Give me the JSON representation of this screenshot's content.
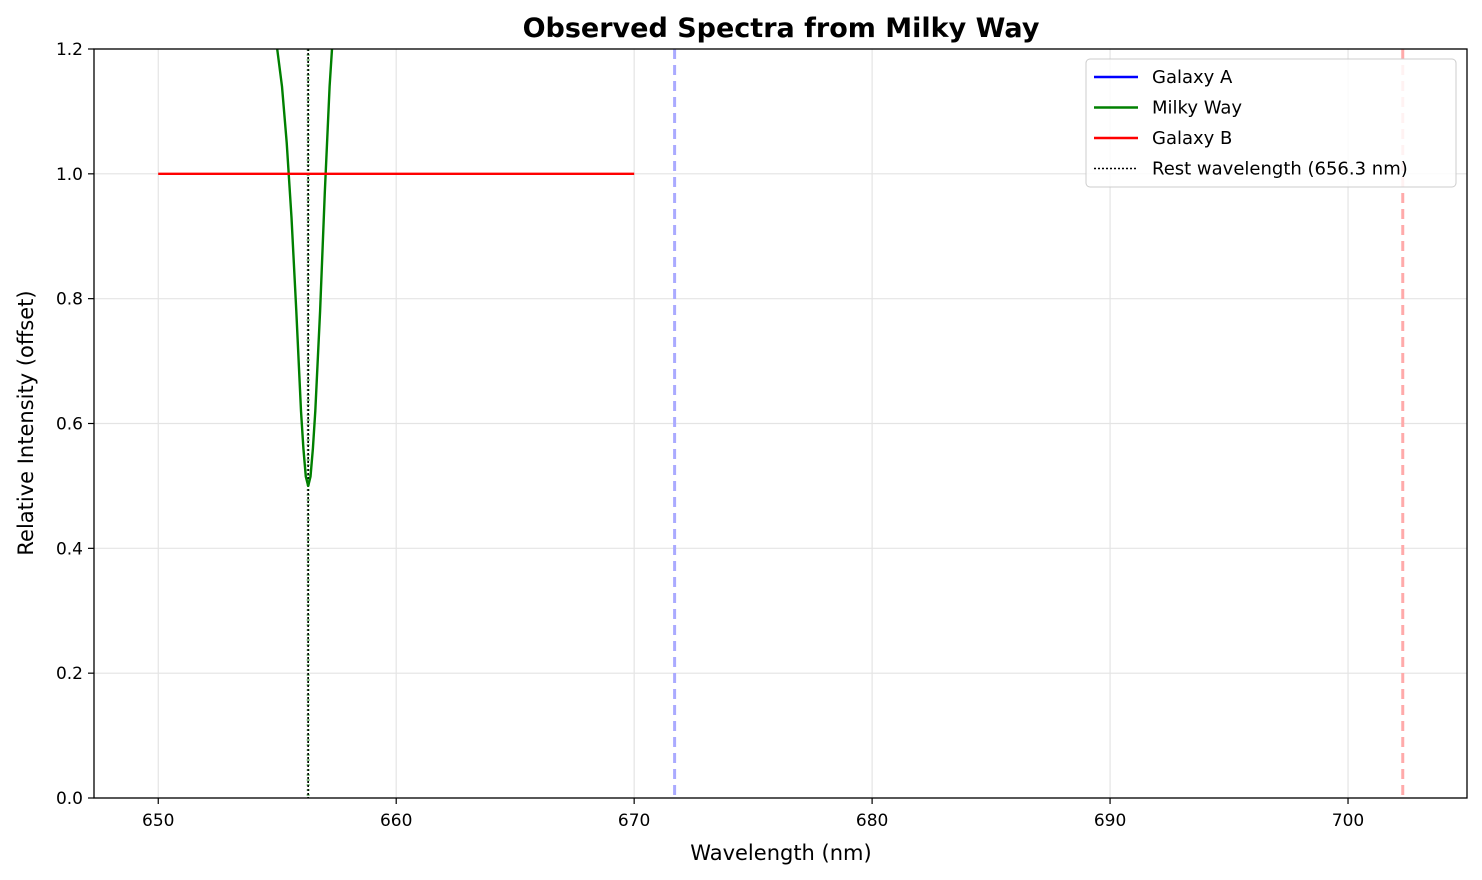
{
  "chart_data": {
    "type": "line",
    "title": "Observed Spectra from Milky Way",
    "xlabel": "Wavelength (nm)",
    "ylabel": "Relative Intensity (offset)",
    "xlim": [
      647.3,
      705.0
    ],
    "ylim": [
      0.0,
      1.2
    ],
    "xticks": [
      650,
      660,
      670,
      680,
      690,
      700
    ],
    "yticks": [
      0.0,
      0.2,
      0.4,
      0.6,
      0.8,
      1.0,
      1.2
    ],
    "xtick_labels": [
      "650",
      "660",
      "670",
      "680",
      "690",
      "700"
    ],
    "ytick_labels": [
      "0.0",
      "0.2",
      "0.4",
      "0.6",
      "0.8",
      "1.0",
      "1.2"
    ],
    "grid": true,
    "legend_position": "top-right",
    "series": [
      {
        "name": "Galaxy A",
        "color": "#0000ff",
        "style": "solid",
        "x": [],
        "y": []
      },
      {
        "name": "Milky Way",
        "color": "#008000",
        "style": "solid",
        "note_shape": "absorption line",
        "center": 656.3,
        "depth": 0.5,
        "x": [
          655.0,
          655.2,
          655.4,
          655.6,
          655.8,
          656.0,
          656.1,
          656.2,
          656.3,
          656.4,
          656.5,
          656.6,
          656.8,
          657.0,
          657.2,
          657.3
        ],
        "y": [
          1.2,
          1.14,
          1.05,
          0.93,
          0.78,
          0.62,
          0.56,
          0.515,
          0.5,
          0.515,
          0.56,
          0.62,
          0.78,
          0.97,
          1.14,
          1.2
        ]
      },
      {
        "name": "Galaxy B",
        "color": "#ff0000",
        "style": "solid",
        "x": [
          650.0,
          670.0
        ],
        "y": [
          1.0,
          1.0
        ]
      }
    ],
    "reference_lines": [
      {
        "name": "Rest wavelength (656.3 nm)",
        "x": 656.3,
        "color": "#000000",
        "style": "dotted",
        "in_legend": true
      },
      {
        "x": 656.3,
        "color": "#80c080",
        "style": "dotted",
        "in_legend": false
      },
      {
        "x": 671.7,
        "color": "#aaaaff",
        "style": "dashed",
        "in_legend": false
      },
      {
        "x": 702.3,
        "color": "#ffaaaa",
        "style": "dashed",
        "in_legend": false
      }
    ],
    "legend": [
      {
        "label": "Galaxy A",
        "color": "#0000ff",
        "style": "solid"
      },
      {
        "label": "Milky Way",
        "color": "#008000",
        "style": "solid"
      },
      {
        "label": "Galaxy B",
        "color": "#ff0000",
        "style": "solid"
      },
      {
        "label": "Rest wavelength (656.3 nm)",
        "color": "#000000",
        "style": "dotted"
      }
    ]
  }
}
